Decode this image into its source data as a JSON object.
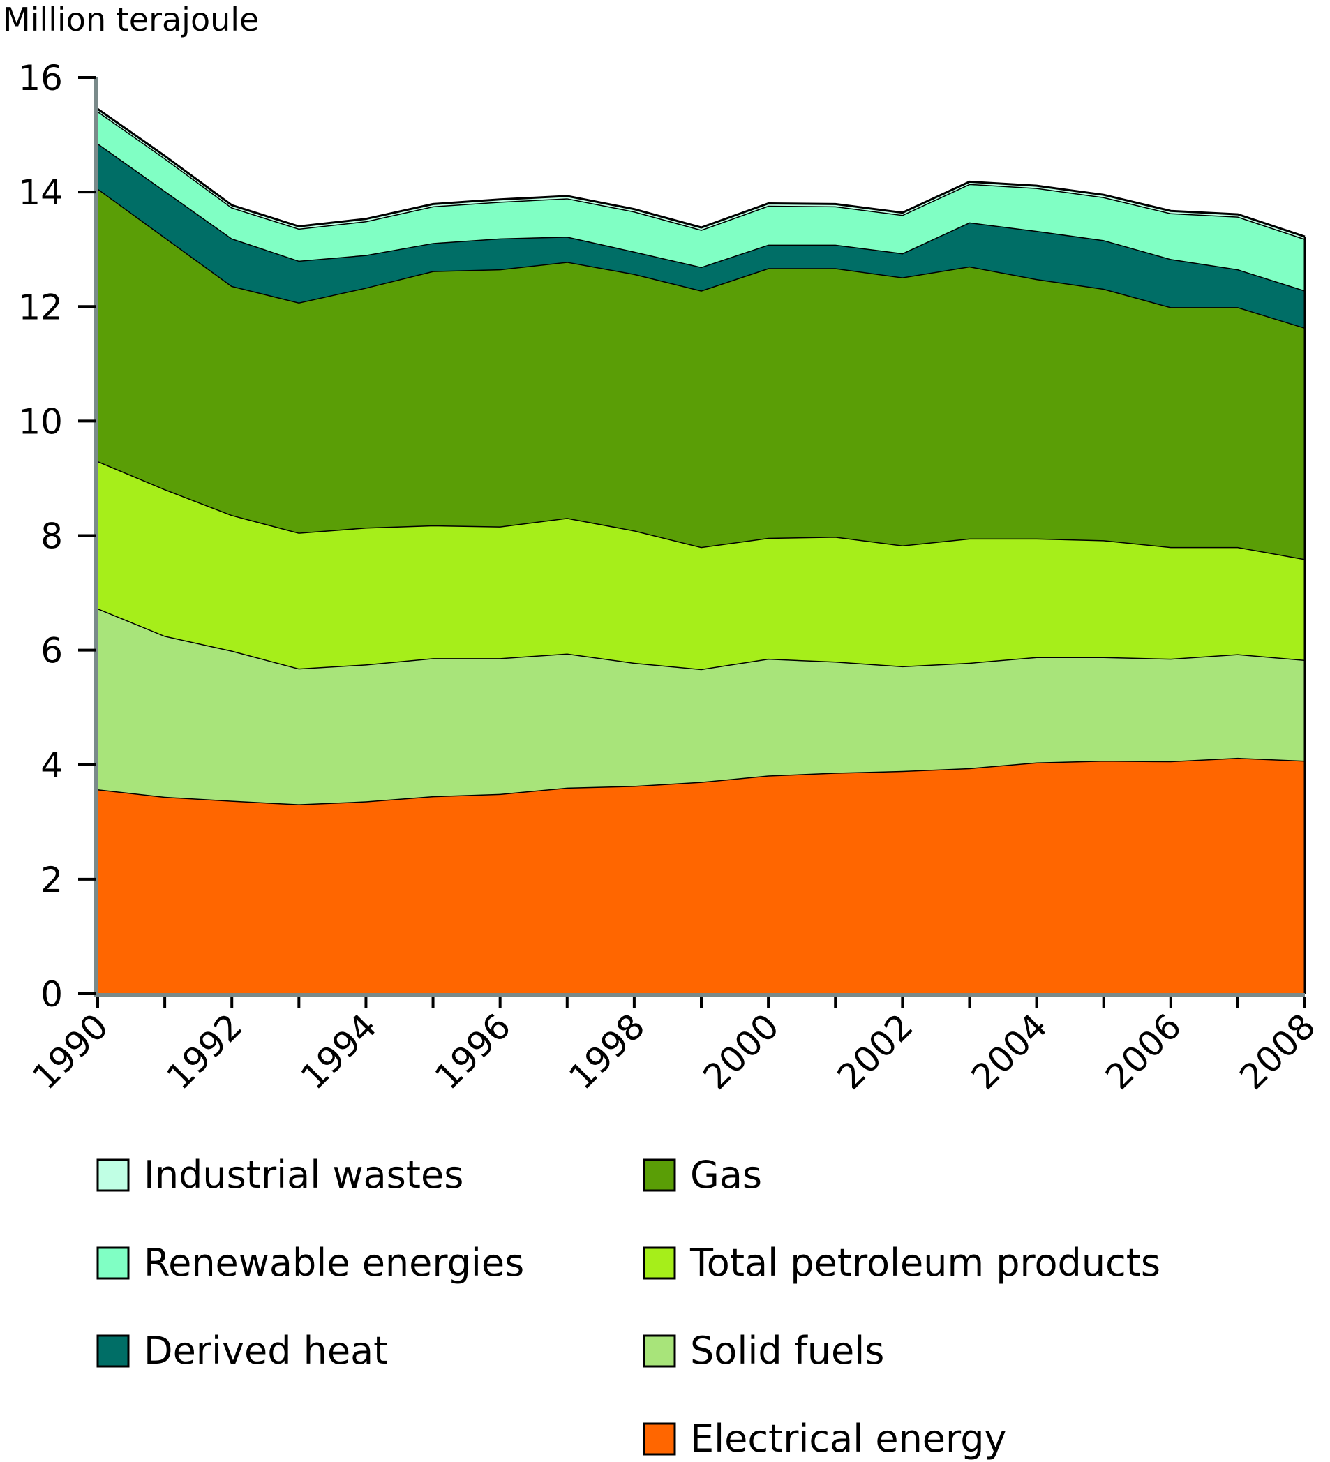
{
  "chart_data": {
    "type": "area",
    "stacked": true,
    "title": "",
    "ylabel": "Million terajoule",
    "xlabel": "",
    "ylim": [
      0,
      16
    ],
    "yticks": [
      0,
      2,
      4,
      6,
      8,
      10,
      12,
      14,
      16
    ],
    "ytick_labels": [
      "0",
      "2",
      "4",
      "6",
      "8",
      "10",
      "12",
      "14",
      "16"
    ],
    "x": [
      1990,
      1991,
      1992,
      1993,
      1994,
      1995,
      1996,
      1997,
      1998,
      1999,
      2000,
      2001,
      2002,
      2003,
      2004,
      2005,
      2006,
      2007,
      2008
    ],
    "xtick_labels": [
      "1990",
      "1992",
      "1994",
      "1996",
      "1998",
      "2000",
      "2002",
      "2004",
      "2006",
      "2008"
    ],
    "grid": false,
    "legend_position": "bottom",
    "series": [
      {
        "name": "Electrical energy",
        "color": "#ff6600",
        "values": [
          3.57,
          3.44,
          3.37,
          3.31,
          3.36,
          3.45,
          3.49,
          3.6,
          3.63,
          3.7,
          3.81,
          3.86,
          3.89,
          3.94,
          4.04,
          4.07,
          4.06,
          4.12,
          4.07
        ]
      },
      {
        "name": "Solid fuels",
        "color": "#a8e47a",
        "values": [
          3.16,
          2.81,
          2.62,
          2.37,
          2.39,
          2.41,
          2.37,
          2.34,
          2.15,
          1.97,
          2.04,
          1.94,
          1.83,
          1.84,
          1.84,
          1.81,
          1.79,
          1.81,
          1.76
        ]
      },
      {
        "name": "Total petroleum products",
        "color": "#a6ee1a",
        "values": [
          2.57,
          2.56,
          2.37,
          2.37,
          2.39,
          2.32,
          2.3,
          2.37,
          2.31,
          2.13,
          2.11,
          2.18,
          2.11,
          2.17,
          2.07,
          2.04,
          1.95,
          1.87,
          1.76
        ]
      },
      {
        "name": "Gas",
        "color": "#5a9e06",
        "values": [
          4.76,
          4.4,
          4.0,
          4.02,
          4.19,
          4.44,
          4.49,
          4.47,
          4.48,
          4.48,
          4.71,
          4.69,
          4.68,
          4.75,
          4.53,
          4.39,
          4.19,
          4.19,
          4.04
        ]
      },
      {
        "name": "Derived heat",
        "color": "#006e66",
        "values": [
          0.79,
          0.81,
          0.83,
          0.73,
          0.57,
          0.49,
          0.54,
          0.44,
          0.39,
          0.41,
          0.41,
          0.41,
          0.42,
          0.77,
          0.84,
          0.85,
          0.84,
          0.66,
          0.65
        ]
      },
      {
        "name": "Renewable energies",
        "color": "#80ffc4",
        "values": [
          0.56,
          0.57,
          0.54,
          0.56,
          0.59,
          0.64,
          0.64,
          0.67,
          0.7,
          0.65,
          0.68,
          0.67,
          0.67,
          0.67,
          0.75,
          0.75,
          0.8,
          0.92,
          0.9
        ]
      },
      {
        "name": "Industrial wastes",
        "color": "#c0ffe4",
        "values": [
          0.04,
          0.04,
          0.04,
          0.04,
          0.04,
          0.04,
          0.04,
          0.04,
          0.04,
          0.04,
          0.04,
          0.04,
          0.04,
          0.04,
          0.04,
          0.04,
          0.04,
          0.04,
          0.04
        ]
      }
    ],
    "legend": {
      "left_column": [
        "Industrial wastes",
        "Renewable energies",
        "Derived heat"
      ],
      "right_column": [
        "Gas",
        "Total petroleum products",
        "Solid fuels",
        "Electrical energy"
      ]
    }
  }
}
